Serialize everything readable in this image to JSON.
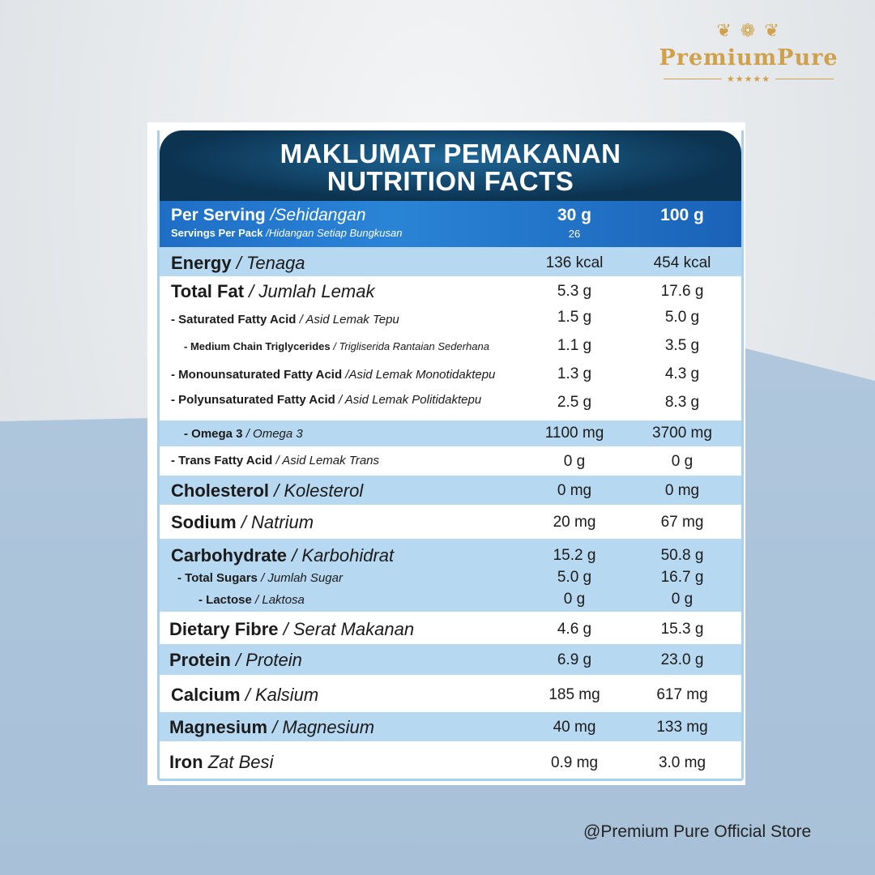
{
  "brand": {
    "name": "PremiumPure",
    "ornament": "❦ ❁ ❦",
    "stars": "★★★★★"
  },
  "footer_text": "@Premium Pure Official Store",
  "label": {
    "title_line1": "MAKLUMAT PEMAKANAN",
    "title_line2": "NUTRITION FACTS",
    "serving": {
      "label_en": "Per Serving",
      "label_ms": "/Sehidangan",
      "pack_en": "Servings Per Pack",
      "pack_ms": "/Hidangan Setiap Bungkusan",
      "col1": "30 g",
      "col1_servings": "26",
      "col2": "100 g"
    },
    "rows": [
      {
        "en": "Energy",
        "ms": "/ Tenaga",
        "v1": "136 kcal",
        "v2": "454 kcal"
      },
      {
        "en": "Total Fat",
        "ms": "/ Jumlah Lemak",
        "v1": "5.3 g",
        "v2": "17.6 g"
      },
      {
        "en": "- Saturated Fatty Acid",
        "ms": "/ Asid Lemak Tepu",
        "v1": "1.5 g",
        "v2": "5.0 g"
      },
      {
        "en": "- Medium Chain Triglycerides",
        "ms": "/ Trigliserida Rantaian Sederhana",
        "v1": "1.1 g",
        "v2": "3.5 g"
      },
      {
        "en": "- Monounsaturated Fatty Acid",
        "ms": "/Asid Lemak Monotidaktepu",
        "v1": "1.3 g",
        "v2": "4.3 g"
      },
      {
        "en": "- Polyunsaturated Fatty Acid",
        "ms": "/ Asid Lemak Politidaktepu",
        "v1": "2.5 g",
        "v2": "8.3 g"
      },
      {
        "en": "- Omega 3",
        "ms": "/ Omega 3",
        "v1": "1100 mg",
        "v2": "3700 mg"
      },
      {
        "en": "- Trans Fatty Acid",
        "ms": "/ Asid Lemak Trans",
        "v1": "0 g",
        "v2": "0 g"
      },
      {
        "en": "Cholesterol",
        "ms": "/ Kolesterol",
        "v1": "0 mg",
        "v2": "0 mg"
      },
      {
        "en": "Sodium",
        "ms": "/ Natrium",
        "v1": "20 mg",
        "v2": "67 mg"
      },
      {
        "en": "Carbohydrate",
        "ms": "/ Karbohidrat",
        "v1": "15.2 g",
        "v2": "50.8 g"
      },
      {
        "en": "- Total Sugars",
        "ms": "/ Jumlah Sugar",
        "v1": "5.0 g",
        "v2": "16.7 g"
      },
      {
        "en": "- Lactose",
        "ms": "/ Laktosa",
        "v1": "0 g",
        "v2": "0 g"
      },
      {
        "en": "Dietary Fibre",
        "ms": "/ Serat Makanan",
        "v1": "4.6 g",
        "v2": "15.3 g"
      },
      {
        "en": "Protein",
        "ms": "/ Protein",
        "v1": "6.9 g",
        "v2": "23.0 g"
      },
      {
        "en": "Calcium",
        "ms": "/ Kalsium",
        "v1": "185 mg",
        "v2": "617 mg"
      },
      {
        "en": "Magnesium",
        "ms": "/ Magnesium",
        "v1": "40 mg",
        "v2": "133 mg"
      },
      {
        "en": "Iron",
        "ms": "Zat Besi",
        "v1": "0.9 mg",
        "v2": "3.0 mg"
      }
    ]
  }
}
